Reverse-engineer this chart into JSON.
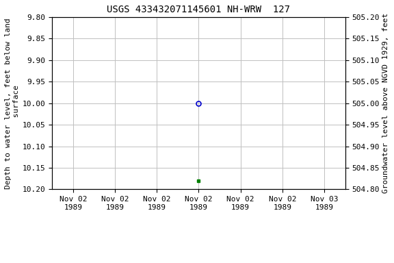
{
  "title": "USGS 433432071145601 NH-WRW  127",
  "ylabel_left": "Depth to water level, feet below land\n surface",
  "ylabel_right": "Groundwater level above NGVD 1929, feet",
  "ylim_left": [
    9.8,
    10.2
  ],
  "ylim_right": [
    504.8,
    505.2
  ],
  "yticks_left": [
    9.8,
    9.85,
    9.9,
    9.95,
    10.0,
    10.05,
    10.1,
    10.15,
    10.2
  ],
  "yticks_right": [
    504.8,
    504.85,
    504.9,
    504.95,
    505.0,
    505.05,
    505.1,
    505.15,
    505.2
  ],
  "data_open_hours": 12,
  "data_open_depth": 10.0,
  "data_filled_hours": 12,
  "data_filled_depth": 10.18,
  "open_marker_color": "#0000cc",
  "filled_marker_color": "#008000",
  "background_color": "#ffffff",
  "grid_color": "#c0c0c0",
  "title_fontsize": 10,
  "axis_label_fontsize": 8,
  "tick_fontsize": 8,
  "legend_color": "#008000",
  "font_family": "monospace",
  "tick_hours": [
    0,
    4,
    8,
    12,
    16,
    20,
    24
  ],
  "tick_labels": [
    "Nov 02\n1989",
    "Nov 02\n1989",
    "Nov 02\n1989",
    "Nov 02\n1989",
    "Nov 02\n1989",
    "Nov 02\n1989",
    "Nov 03\n1989"
  ]
}
